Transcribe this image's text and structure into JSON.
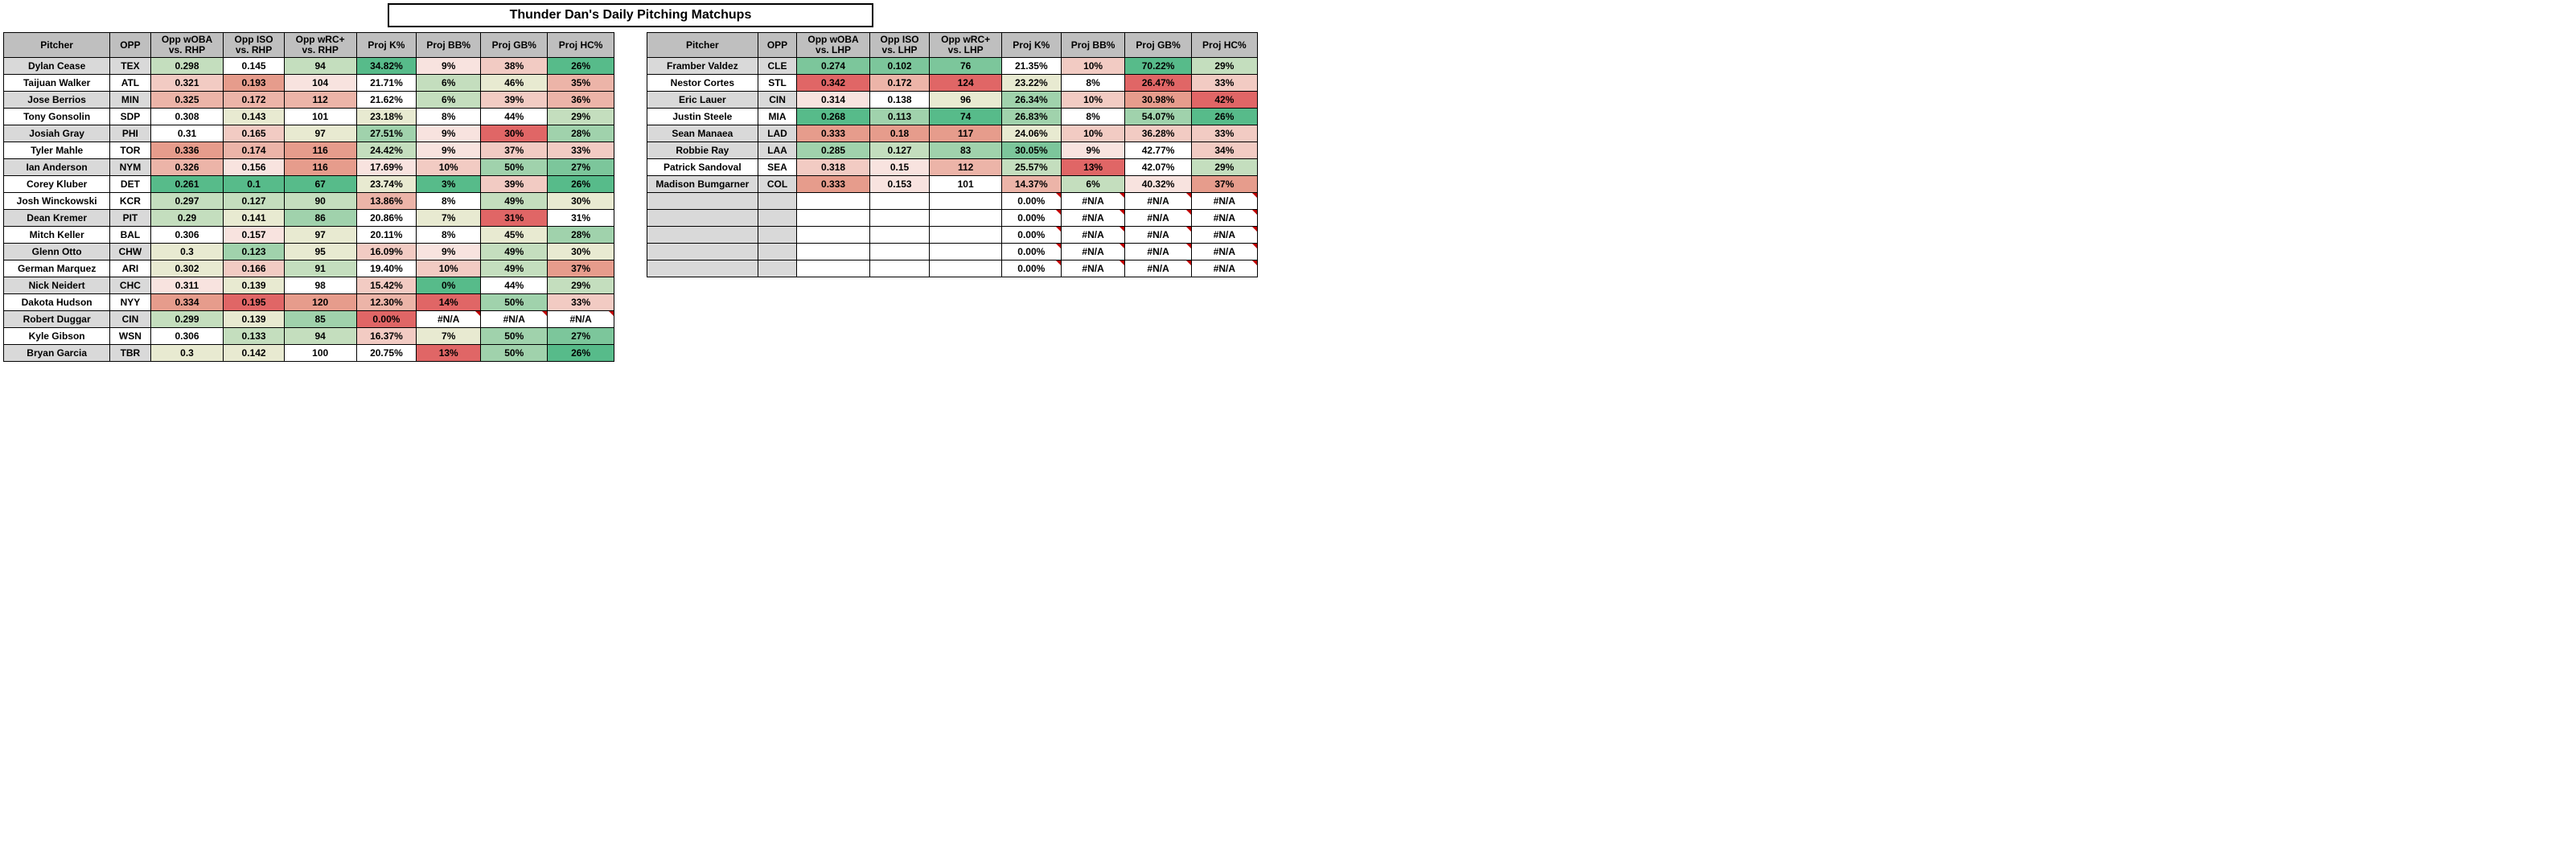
{
  "title": "Thunder Dan's Daily Pitching Matchups",
  "colors": {
    "header_bg": "#bfbfbf",
    "alt_row_bg": "#d9d9d9",
    "err_corner": "#c00000",
    "scale": {
      "g5": "#57bb8a",
      "g4": "#7cc69b",
      "g3": "#a0d2ac",
      "g2": "#c4debe",
      "g1": "#e8ead1",
      "n": "#ffffff",
      "r1": "#f8e3df",
      "r2": "#f2cbc3",
      "r3": "#ecb4a8",
      "r4": "#e69c8c",
      "r5": "#e06666"
    }
  },
  "left": {
    "headers": [
      "Pitcher",
      "OPP",
      "Opp wOBA\nvs. RHP",
      "Opp ISO\nvs. RHP",
      "Opp wRC+\nvs. RHP",
      "Proj K%",
      "Proj BB%",
      "Proj GB%",
      "Proj HC%"
    ],
    "rows": [
      {
        "alt": true,
        "pitcher": "Dylan Cease",
        "opp": "TEX",
        "woba": {
          "v": "0.298",
          "c": "g2"
        },
        "iso": {
          "v": "0.145",
          "c": "n"
        },
        "wrc": {
          "v": "94",
          "c": "g2"
        },
        "k": {
          "v": "34.82%",
          "c": "g5"
        },
        "bb": {
          "v": "9%",
          "c": "r1"
        },
        "gb": {
          "v": "38%",
          "c": "r2"
        },
        "hc": {
          "v": "26%",
          "c": "g5"
        }
      },
      {
        "alt": false,
        "pitcher": "Taijuan Walker",
        "opp": "ATL",
        "woba": {
          "v": "0.321",
          "c": "r2"
        },
        "iso": {
          "v": "0.193",
          "c": "r4"
        },
        "wrc": {
          "v": "104",
          "c": "r1"
        },
        "k": {
          "v": "21.71%",
          "c": "n"
        },
        "bb": {
          "v": "6%",
          "c": "g2"
        },
        "gb": {
          "v": "46%",
          "c": "g1"
        },
        "hc": {
          "v": "35%",
          "c": "r3"
        }
      },
      {
        "alt": true,
        "pitcher": "Jose Berrios",
        "opp": "MIN",
        "woba": {
          "v": "0.325",
          "c": "r3"
        },
        "iso": {
          "v": "0.172",
          "c": "r3"
        },
        "wrc": {
          "v": "112",
          "c": "r3"
        },
        "k": {
          "v": "21.62%",
          "c": "n"
        },
        "bb": {
          "v": "6%",
          "c": "g2"
        },
        "gb": {
          "v": "39%",
          "c": "r2"
        },
        "hc": {
          "v": "36%",
          "c": "r3"
        }
      },
      {
        "alt": false,
        "pitcher": "Tony Gonsolin",
        "opp": "SDP",
        "woba": {
          "v": "0.308",
          "c": "n"
        },
        "iso": {
          "v": "0.143",
          "c": "g1"
        },
        "wrc": {
          "v": "101",
          "c": "n"
        },
        "k": {
          "v": "23.18%",
          "c": "g1"
        },
        "bb": {
          "v": "8%",
          "c": "n"
        },
        "gb": {
          "v": "44%",
          "c": "n"
        },
        "hc": {
          "v": "29%",
          "c": "g2"
        }
      },
      {
        "alt": true,
        "pitcher": "Josiah Gray",
        "opp": "PHI",
        "woba": {
          "v": "0.31",
          "c": "n"
        },
        "iso": {
          "v": "0.165",
          "c": "r2"
        },
        "wrc": {
          "v": "97",
          "c": "g1"
        },
        "k": {
          "v": "27.51%",
          "c": "g3"
        },
        "bb": {
          "v": "9%",
          "c": "r1"
        },
        "gb": {
          "v": "30%",
          "c": "r5"
        },
        "hc": {
          "v": "28%",
          "c": "g3"
        }
      },
      {
        "alt": false,
        "pitcher": "Tyler Mahle",
        "opp": "TOR",
        "woba": {
          "v": "0.336",
          "c": "r4"
        },
        "iso": {
          "v": "0.174",
          "c": "r3"
        },
        "wrc": {
          "v": "116",
          "c": "r4"
        },
        "k": {
          "v": "24.42%",
          "c": "g2"
        },
        "bb": {
          "v": "9%",
          "c": "r1"
        },
        "gb": {
          "v": "37%",
          "c": "r2"
        },
        "hc": {
          "v": "33%",
          "c": "r2"
        }
      },
      {
        "alt": true,
        "pitcher": "Ian Anderson",
        "opp": "NYM",
        "woba": {
          "v": "0.326",
          "c": "r3"
        },
        "iso": {
          "v": "0.156",
          "c": "r1"
        },
        "wrc": {
          "v": "116",
          "c": "r4"
        },
        "k": {
          "v": "17.69%",
          "c": "r1"
        },
        "bb": {
          "v": "10%",
          "c": "r2"
        },
        "gb": {
          "v": "50%",
          "c": "g3"
        },
        "hc": {
          "v": "27%",
          "c": "g4"
        }
      },
      {
        "alt": false,
        "pitcher": "Corey Kluber",
        "opp": "DET",
        "woba": {
          "v": "0.261",
          "c": "g5"
        },
        "iso": {
          "v": "0.1",
          "c": "g5"
        },
        "wrc": {
          "v": "67",
          "c": "g5"
        },
        "k": {
          "v": "23.74%",
          "c": "g1"
        },
        "bb": {
          "v": "3%",
          "c": "g5"
        },
        "gb": {
          "v": "39%",
          "c": "r2"
        },
        "hc": {
          "v": "26%",
          "c": "g5"
        }
      },
      {
        "alt": false,
        "pitcher": "Josh Winckowski",
        "opp": "KCR",
        "woba": {
          "v": "0.297",
          "c": "g2"
        },
        "iso": {
          "v": "0.127",
          "c": "g2"
        },
        "wrc": {
          "v": "90",
          "c": "g2"
        },
        "k": {
          "v": "13.86%",
          "c": "r3"
        },
        "bb": {
          "v": "8%",
          "c": "n"
        },
        "gb": {
          "v": "49%",
          "c": "g2"
        },
        "hc": {
          "v": "30%",
          "c": "g1"
        }
      },
      {
        "alt": true,
        "pitcher": "Dean Kremer",
        "opp": "PIT",
        "woba": {
          "v": "0.29",
          "c": "g2"
        },
        "iso": {
          "v": "0.141",
          "c": "g1"
        },
        "wrc": {
          "v": "86",
          "c": "g3"
        },
        "k": {
          "v": "20.86%",
          "c": "n"
        },
        "bb": {
          "v": "7%",
          "c": "g1"
        },
        "gb": {
          "v": "31%",
          "c": "r5"
        },
        "hc": {
          "v": "31%",
          "c": "n"
        }
      },
      {
        "alt": false,
        "pitcher": "Mitch Keller",
        "opp": "BAL",
        "woba": {
          "v": "0.306",
          "c": "n"
        },
        "iso": {
          "v": "0.157",
          "c": "r1"
        },
        "wrc": {
          "v": "97",
          "c": "g1"
        },
        "k": {
          "v": "20.11%",
          "c": "n"
        },
        "bb": {
          "v": "8%",
          "c": "n"
        },
        "gb": {
          "v": "45%",
          "c": "g1"
        },
        "hc": {
          "v": "28%",
          "c": "g3"
        }
      },
      {
        "alt": true,
        "pitcher": "Glenn Otto",
        "opp": "CHW",
        "woba": {
          "v": "0.3",
          "c": "g1"
        },
        "iso": {
          "v": "0.123",
          "c": "g3"
        },
        "wrc": {
          "v": "95",
          "c": "g1"
        },
        "k": {
          "v": "16.09%",
          "c": "r2"
        },
        "bb": {
          "v": "9%",
          "c": "r1"
        },
        "gb": {
          "v": "49%",
          "c": "g2"
        },
        "hc": {
          "v": "30%",
          "c": "g1"
        }
      },
      {
        "alt": false,
        "pitcher": "German Marquez",
        "opp": "ARI",
        "woba": {
          "v": "0.302",
          "c": "g1"
        },
        "iso": {
          "v": "0.166",
          "c": "r2"
        },
        "wrc": {
          "v": "91",
          "c": "g2"
        },
        "k": {
          "v": "19.40%",
          "c": "n"
        },
        "bb": {
          "v": "10%",
          "c": "r2"
        },
        "gb": {
          "v": "49%",
          "c": "g2"
        },
        "hc": {
          "v": "37%",
          "c": "r4"
        }
      },
      {
        "alt": true,
        "pitcher": "Nick Neidert",
        "opp": "CHC",
        "woba": {
          "v": "0.311",
          "c": "r1"
        },
        "iso": {
          "v": "0.139",
          "c": "g1"
        },
        "wrc": {
          "v": "98",
          "c": "n"
        },
        "k": {
          "v": "15.42%",
          "c": "r2"
        },
        "bb": {
          "v": "0%",
          "c": "g5"
        },
        "gb": {
          "v": "44%",
          "c": "n"
        },
        "hc": {
          "v": "29%",
          "c": "g2"
        }
      },
      {
        "alt": false,
        "pitcher": "Dakota Hudson",
        "opp": "NYY",
        "woba": {
          "v": "0.334",
          "c": "r4"
        },
        "iso": {
          "v": "0.195",
          "c": "r5"
        },
        "wrc": {
          "v": "120",
          "c": "r4"
        },
        "k": {
          "v": "12.30%",
          "c": "r3"
        },
        "bb": {
          "v": "14%",
          "c": "r5"
        },
        "gb": {
          "v": "50%",
          "c": "g3"
        },
        "hc": {
          "v": "33%",
          "c": "r2"
        }
      },
      {
        "alt": true,
        "pitcher": "Robert Duggar",
        "opp": "CIN",
        "woba": {
          "v": "0.299",
          "c": "g2"
        },
        "iso": {
          "v": "0.139",
          "c": "g1"
        },
        "wrc": {
          "v": "85",
          "c": "g3"
        },
        "k": {
          "v": "0.00%",
          "c": "r5"
        },
        "bb": {
          "v": "#N/A",
          "c": "n",
          "err": true
        },
        "gb": {
          "v": "#N/A",
          "c": "n",
          "err": true
        },
        "hc": {
          "v": "#N/A",
          "c": "n",
          "err": true
        }
      },
      {
        "alt": false,
        "pitcher": "Kyle Gibson",
        "opp": "WSN",
        "woba": {
          "v": "0.306",
          "c": "n"
        },
        "iso": {
          "v": "0.133",
          "c": "g2"
        },
        "wrc": {
          "v": "94",
          "c": "g2"
        },
        "k": {
          "v": "16.37%",
          "c": "r2"
        },
        "bb": {
          "v": "7%",
          "c": "g1"
        },
        "gb": {
          "v": "50%",
          "c": "g3"
        },
        "hc": {
          "v": "27%",
          "c": "g4"
        }
      },
      {
        "alt": true,
        "pitcher": "Bryan Garcia",
        "opp": "TBR",
        "woba": {
          "v": "0.3",
          "c": "g1"
        },
        "iso": {
          "v": "0.142",
          "c": "g1"
        },
        "wrc": {
          "v": "100",
          "c": "n"
        },
        "k": {
          "v": "20.75%",
          "c": "n"
        },
        "bb": {
          "v": "13%",
          "c": "r5"
        },
        "gb": {
          "v": "50%",
          "c": "g3"
        },
        "hc": {
          "v": "26%",
          "c": "g5"
        }
      }
    ]
  },
  "right": {
    "headers": [
      "Pitcher",
      "OPP",
      "Opp wOBA\nvs. LHP",
      "Opp ISO\nvs. LHP",
      "Opp wRC+\nvs. LHP",
      "Proj K%",
      "Proj BB%",
      "Proj GB%",
      "Proj HC%"
    ],
    "rows": [
      {
        "alt": true,
        "pitcher": "Framber Valdez",
        "opp": "CLE",
        "woba": {
          "v": "0.274",
          "c": "g4"
        },
        "iso": {
          "v": "0.102",
          "c": "g4"
        },
        "wrc": {
          "v": "76",
          "c": "g4"
        },
        "k": {
          "v": "21.35%",
          "c": "n"
        },
        "bb": {
          "v": "10%",
          "c": "r2"
        },
        "gb": {
          "v": "70.22%",
          "c": "g5"
        },
        "hc": {
          "v": "29%",
          "c": "g2"
        }
      },
      {
        "alt": false,
        "pitcher": "Nestor Cortes",
        "opp": "STL",
        "woba": {
          "v": "0.342",
          "c": "r5"
        },
        "iso": {
          "v": "0.172",
          "c": "r3"
        },
        "wrc": {
          "v": "124",
          "c": "r5"
        },
        "k": {
          "v": "23.22%",
          "c": "g1"
        },
        "bb": {
          "v": "8%",
          "c": "n"
        },
        "gb": {
          "v": "26.47%",
          "c": "r5"
        },
        "hc": {
          "v": "33%",
          "c": "r2"
        }
      },
      {
        "alt": true,
        "pitcher": "Eric Lauer",
        "opp": "CIN",
        "woba": {
          "v": "0.314",
          "c": "r1"
        },
        "iso": {
          "v": "0.138",
          "c": "n"
        },
        "wrc": {
          "v": "96",
          "c": "g1"
        },
        "k": {
          "v": "26.34%",
          "c": "g3"
        },
        "bb": {
          "v": "10%",
          "c": "r2"
        },
        "gb": {
          "v": "30.98%",
          "c": "r4"
        },
        "hc": {
          "v": "42%",
          "c": "r5"
        }
      },
      {
        "alt": false,
        "pitcher": "Justin Steele",
        "opp": "MIA",
        "woba": {
          "v": "0.268",
          "c": "g5"
        },
        "iso": {
          "v": "0.113",
          "c": "g3"
        },
        "wrc": {
          "v": "74",
          "c": "g5"
        },
        "k": {
          "v": "26.83%",
          "c": "g3"
        },
        "bb": {
          "v": "8%",
          "c": "n"
        },
        "gb": {
          "v": "54.07%",
          "c": "g3"
        },
        "hc": {
          "v": "26%",
          "c": "g5"
        }
      },
      {
        "alt": true,
        "pitcher": "Sean Manaea",
        "opp": "LAD",
        "woba": {
          "v": "0.333",
          "c": "r4"
        },
        "iso": {
          "v": "0.18",
          "c": "r4"
        },
        "wrc": {
          "v": "117",
          "c": "r4"
        },
        "k": {
          "v": "24.06%",
          "c": "g1"
        },
        "bb": {
          "v": "10%",
          "c": "r2"
        },
        "gb": {
          "v": "36.28%",
          "c": "r2"
        },
        "hc": {
          "v": "33%",
          "c": "r2"
        }
      },
      {
        "alt": true,
        "pitcher": "Robbie Ray",
        "opp": "LAA",
        "woba": {
          "v": "0.285",
          "c": "g3"
        },
        "iso": {
          "v": "0.127",
          "c": "g2"
        },
        "wrc": {
          "v": "83",
          "c": "g3"
        },
        "k": {
          "v": "30.05%",
          "c": "g4"
        },
        "bb": {
          "v": "9%",
          "c": "r1"
        },
        "gb": {
          "v": "42.77%",
          "c": "n"
        },
        "hc": {
          "v": "34%",
          "c": "r2"
        }
      },
      {
        "alt": false,
        "pitcher": "Patrick Sandoval",
        "opp": "SEA",
        "woba": {
          "v": "0.318",
          "c": "r2"
        },
        "iso": {
          "v": "0.15",
          "c": "r1"
        },
        "wrc": {
          "v": "112",
          "c": "r3"
        },
        "k": {
          "v": "25.57%",
          "c": "g2"
        },
        "bb": {
          "v": "13%",
          "c": "r5"
        },
        "gb": {
          "v": "42.07%",
          "c": "n"
        },
        "hc": {
          "v": "29%",
          "c": "g2"
        }
      },
      {
        "alt": true,
        "pitcher": "Madison Bumgarner",
        "opp": "COL",
        "woba": {
          "v": "0.333",
          "c": "r4"
        },
        "iso": {
          "v": "0.153",
          "c": "r1"
        },
        "wrc": {
          "v": "101",
          "c": "n"
        },
        "k": {
          "v": "14.37%",
          "c": "r3"
        },
        "bb": {
          "v": "6%",
          "c": "g2"
        },
        "gb": {
          "v": "40.32%",
          "c": "r1"
        },
        "hc": {
          "v": "37%",
          "c": "r4"
        }
      },
      {
        "alt": true,
        "pitcher": "",
        "opp": "",
        "woba": {
          "v": ""
        },
        "iso": {
          "v": ""
        },
        "wrc": {
          "v": ""
        },
        "k": {
          "v": "0.00%",
          "c": "n",
          "err": true
        },
        "bb": {
          "v": "#N/A",
          "c": "n",
          "err": true
        },
        "gb": {
          "v": "#N/A",
          "c": "n",
          "err": true
        },
        "hc": {
          "v": "#N/A",
          "c": "n",
          "err": true
        }
      },
      {
        "alt": true,
        "pitcher": "",
        "opp": "",
        "woba": {
          "v": ""
        },
        "iso": {
          "v": ""
        },
        "wrc": {
          "v": ""
        },
        "k": {
          "v": "0.00%",
          "c": "n",
          "err": true
        },
        "bb": {
          "v": "#N/A",
          "c": "n",
          "err": true
        },
        "gb": {
          "v": "#N/A",
          "c": "n",
          "err": true
        },
        "hc": {
          "v": "#N/A",
          "c": "n",
          "err": true
        }
      },
      {
        "alt": true,
        "pitcher": "",
        "opp": "",
        "woba": {
          "v": ""
        },
        "iso": {
          "v": ""
        },
        "wrc": {
          "v": ""
        },
        "k": {
          "v": "0.00%",
          "c": "n",
          "err": true
        },
        "bb": {
          "v": "#N/A",
          "c": "n",
          "err": true
        },
        "gb": {
          "v": "#N/A",
          "c": "n",
          "err": true
        },
        "hc": {
          "v": "#N/A",
          "c": "n",
          "err": true
        }
      },
      {
        "alt": true,
        "pitcher": "",
        "opp": "",
        "woba": {
          "v": ""
        },
        "iso": {
          "v": ""
        },
        "wrc": {
          "v": ""
        },
        "k": {
          "v": "0.00%",
          "c": "n",
          "err": true
        },
        "bb": {
          "v": "#N/A",
          "c": "n",
          "err": true
        },
        "gb": {
          "v": "#N/A",
          "c": "n",
          "err": true
        },
        "hc": {
          "v": "#N/A",
          "c": "n",
          "err": true
        }
      },
      {
        "alt": true,
        "pitcher": "",
        "opp": "",
        "woba": {
          "v": ""
        },
        "iso": {
          "v": ""
        },
        "wrc": {
          "v": ""
        },
        "k": {
          "v": "0.00%",
          "c": "n",
          "err": true
        },
        "bb": {
          "v": "#N/A",
          "c": "n",
          "err": true
        },
        "gb": {
          "v": "#N/A",
          "c": "n",
          "err": true
        },
        "hc": {
          "v": "#N/A",
          "c": "n",
          "err": true
        }
      }
    ]
  }
}
